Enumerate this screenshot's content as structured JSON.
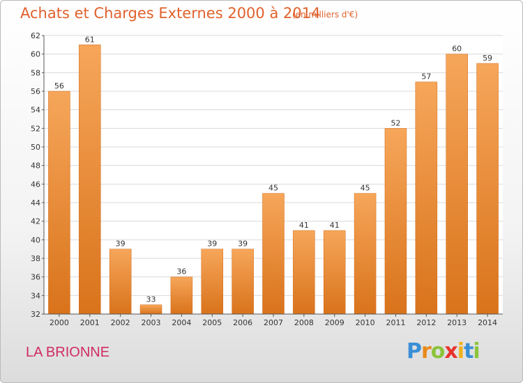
{
  "header": {
    "title": "Achats et Charges Externes 2000 à 2014",
    "subtitle": "(en milliers d'€)"
  },
  "footer": {
    "commune": "LA BRIONNE",
    "logo_letters": [
      "P",
      "r",
      "o",
      "x",
      "i",
      "t",
      "i"
    ],
    "logo_colors": [
      "#3a8fd6",
      "#e98a1b",
      "#8cc43c",
      "#e8322c",
      "#f0b21a",
      "#3a8fd6",
      "#8cc43c"
    ]
  },
  "colors": {
    "bar_light": "#f6a65a",
    "bar_dark": "#d9731b",
    "grid": "#d9d9d9",
    "axis": "#555555"
  },
  "chart_data": {
    "type": "bar",
    "categories": [
      "2000",
      "2001",
      "2002",
      "2003",
      "2004",
      "2005",
      "2006",
      "2007",
      "2008",
      "2009",
      "2010",
      "2011",
      "2012",
      "2013",
      "2014"
    ],
    "values": [
      56,
      61,
      39,
      33,
      36,
      39,
      39,
      45,
      41,
      41,
      45,
      52,
      57,
      60,
      59
    ],
    "ylim": [
      32,
      62
    ],
    "yticks": [
      32,
      34,
      36,
      38,
      40,
      42,
      44,
      46,
      48,
      50,
      52,
      54,
      56,
      58,
      60,
      62
    ],
    "grid": true,
    "data_labels": true
  }
}
